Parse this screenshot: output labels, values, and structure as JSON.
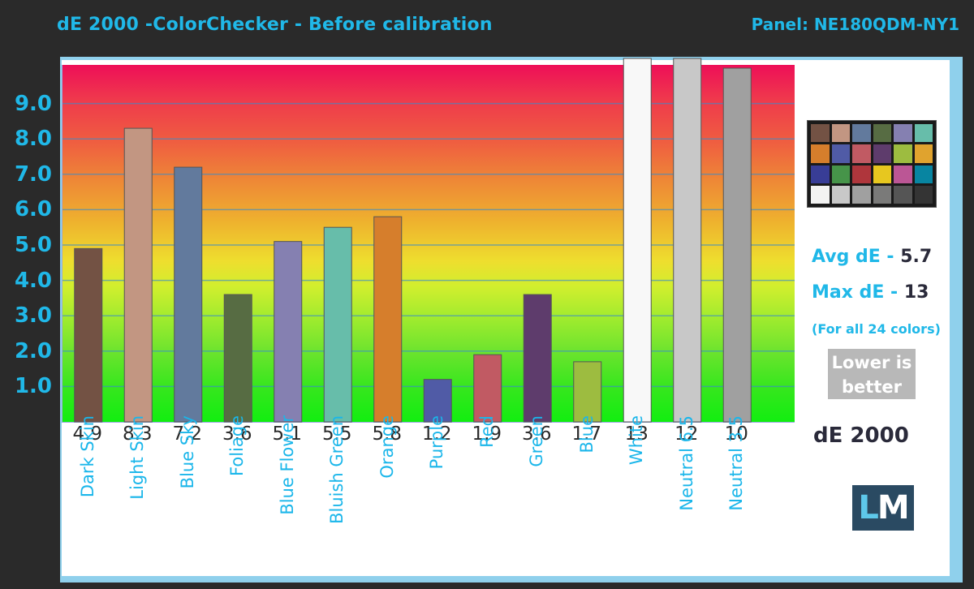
{
  "title": "dE 2000 -ColorChecker - Before calibration",
  "panel": "Panel: NE180QDM-NY1",
  "chart_data": {
    "type": "bar",
    "ylim": [
      0,
      10
    ],
    "yticks": [
      1.0,
      2.0,
      3.0,
      4.0,
      5.0,
      6.0,
      7.0,
      8.0,
      9.0
    ],
    "ytick_labels": [
      "1.0",
      "2.0",
      "3.0",
      "4.0",
      "5.0",
      "6.0",
      "7.0",
      "8.0",
      "9.0"
    ],
    "categories": [
      "Dark Skin",
      "Light Skin",
      "Blue Sky",
      "Foliage",
      "Blue Flower",
      "Bluish Green",
      "Orange",
      "Purple",
      "Red",
      "Green",
      "Blue",
      "White",
      "Neutral 6.5",
      "Neutral 3.5"
    ],
    "values": [
      4.9,
      8.3,
      7.2,
      3.6,
      5.1,
      5.5,
      5.8,
      1.2,
      1.9,
      3.6,
      1.7,
      13,
      12,
      10
    ],
    "value_labels": [
      "4.9",
      "8.3",
      "7.2",
      "3.6",
      "5.1",
      "5.5",
      "5.8",
      "1.2",
      "1.9",
      "3.6",
      "1.7",
      "13",
      "12",
      "10"
    ],
    "bar_colors": [
      "#735244",
      "#c29682",
      "#627a9d",
      "#576c43",
      "#8580b1",
      "#67bdaa",
      "#d67e2c",
      "#505ba6",
      "#c15a63",
      "#5e3c6c",
      "#9dbc40",
      "#f8f8f8",
      "#c8c8c8",
      "#a0a0a0"
    ],
    "xlabel": "dE 2000"
  },
  "checker_colors": [
    "#735244",
    "#c29682",
    "#627a9d",
    "#576c43",
    "#8580b1",
    "#67bdaa",
    "#d67e2c",
    "#505ba6",
    "#c15a63",
    "#5e3c6c",
    "#9dbc40",
    "#e0a32e",
    "#383d96",
    "#469449",
    "#af363c",
    "#e7c71f",
    "#bb5695",
    "#0885a1",
    "#f3f3f2",
    "#c8c8c8",
    "#a0a0a0",
    "#7a7a79",
    "#555555",
    "#343434"
  ],
  "stats": {
    "avg_label": "Avg dE -",
    "avg_value": "5.7",
    "max_label": "Max dE -",
    "max_value": "13",
    "note": "(For all 24 colors)"
  },
  "lower": [
    "Lower is",
    "better"
  ],
  "logo": {
    "l": "L",
    "m": "M"
  }
}
